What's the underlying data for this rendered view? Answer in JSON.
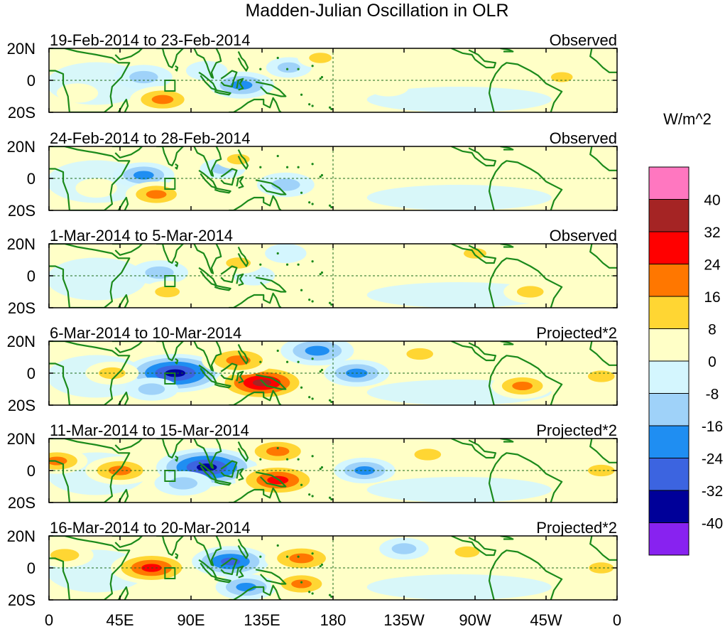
{
  "chart_data": {
    "type": "heatmap",
    "title": "Madden-Julian Oscillation in OLR",
    "units_label": "W/m^2",
    "x_tick_labels": [
      "0",
      "45E",
      "90E",
      "135E",
      "180",
      "135W",
      "90W",
      "45W",
      "0"
    ],
    "x_range_deg_east": [
      0,
      360
    ],
    "y_tick_labels": [
      "20N",
      "0",
      "20S"
    ],
    "y_range_deg": [
      -20,
      20
    ],
    "colorbar": {
      "levels": [
        40,
        32,
        24,
        16,
        8,
        0,
        -8,
        -16,
        -24,
        -32,
        -40
      ],
      "level_labels": [
        "40",
        "32",
        "24",
        "16",
        "8",
        "0",
        "-8",
        "-16",
        "-24",
        "-32",
        "-40"
      ],
      "colors": [
        "#ff77c0",
        "#a52424",
        "#ff0000",
        "#ff7700",
        "#ffd633",
        "#ffffc7",
        "#d4f6fe",
        "#9fd2f9",
        "#1f8ef2",
        "#3c64e0",
        "#000099",
        "#8822f0"
      ]
    },
    "panels": [
      {
        "period": "19-Feb-2014 to 23-Feb-2014",
        "kind": "Observed",
        "anomalies": [
          {
            "lon": 60,
            "lat": 2,
            "value": -16,
            "sign": "neg"
          },
          {
            "lon": 100,
            "lat": 6,
            "value": -8,
            "sign": "neg"
          },
          {
            "lon": 122,
            "lat": -3,
            "value": -20,
            "sign": "neg"
          },
          {
            "lon": 152,
            "lat": 8,
            "value": -10,
            "sign": "neg"
          },
          {
            "lon": 72,
            "lat": -12,
            "value": 20,
            "sign": "pos"
          },
          {
            "lon": 172,
            "lat": 14,
            "value": 10,
            "sign": "pos"
          },
          {
            "lon": 215,
            "lat": -4,
            "value": 8,
            "sign": "pos"
          },
          {
            "lon": 325,
            "lat": 2,
            "value": 9,
            "sign": "pos"
          },
          {
            "lon": 18,
            "lat": -8,
            "value": 8,
            "sign": "pos"
          }
        ]
      },
      {
        "period": "24-Feb-2014 to 28-Feb-2014",
        "kind": "Observed",
        "anomalies": [
          {
            "lon": 60,
            "lat": 2,
            "value": -18,
            "sign": "neg"
          },
          {
            "lon": 110,
            "lat": 6,
            "value": -10,
            "sign": "neg"
          },
          {
            "lon": 150,
            "lat": -4,
            "value": -16,
            "sign": "neg"
          },
          {
            "lon": 68,
            "lat": -10,
            "value": 18,
            "sign": "pos"
          },
          {
            "lon": 120,
            "lat": 12,
            "value": 10,
            "sign": "pos"
          },
          {
            "lon": 228,
            "lat": 15,
            "value": 8,
            "sign": "pos"
          },
          {
            "lon": 30,
            "lat": -6,
            "value": 8,
            "sign": "pos"
          }
        ]
      },
      {
        "period": "1-Mar-2014 to 5-Mar-2014",
        "kind": "Observed",
        "anomalies": [
          {
            "lon": 70,
            "lat": 2,
            "value": -16,
            "sign": "neg"
          },
          {
            "lon": 130,
            "lat": 0,
            "value": -8,
            "sign": "neg"
          },
          {
            "lon": 150,
            "lat": 14,
            "value": -8,
            "sign": "neg"
          },
          {
            "lon": 75,
            "lat": -10,
            "value": 12,
            "sign": "pos"
          },
          {
            "lon": 120,
            "lat": 8,
            "value": 12,
            "sign": "pos"
          },
          {
            "lon": 270,
            "lat": 14,
            "value": 10,
            "sign": "pos"
          },
          {
            "lon": 305,
            "lat": -10,
            "value": 14,
            "sign": "pos"
          }
        ]
      },
      {
        "period": "6-Mar-2014 to 10-Mar-2014",
        "kind": "Projected*2",
        "anomalies": [
          {
            "lon": 80,
            "lat": 0,
            "value": -38,
            "sign": "neg"
          },
          {
            "lon": 65,
            "lat": -10,
            "value": -14,
            "sign": "neg"
          },
          {
            "lon": 170,
            "lat": 14,
            "value": -24,
            "sign": "neg"
          },
          {
            "lon": 195,
            "lat": 0,
            "value": -20,
            "sign": "neg"
          },
          {
            "lon": 135,
            "lat": -6,
            "value": 34,
            "sign": "pos"
          },
          {
            "lon": 120,
            "lat": 8,
            "value": 24,
            "sign": "pos"
          },
          {
            "lon": 235,
            "lat": 12,
            "value": 14,
            "sign": "pos"
          },
          {
            "lon": 300,
            "lat": -8,
            "value": 18,
            "sign": "pos"
          },
          {
            "lon": 40,
            "lat": 0,
            "value": 14,
            "sign": "pos"
          },
          {
            "lon": 350,
            "lat": -2,
            "value": 14,
            "sign": "pos"
          }
        ]
      },
      {
        "period": "11-Mar-2014 to 15-Mar-2014",
        "kind": "Projected*2",
        "anomalies": [
          {
            "lon": 100,
            "lat": 2,
            "value": -38,
            "sign": "neg"
          },
          {
            "lon": 85,
            "lat": -8,
            "value": -16,
            "sign": "neg"
          },
          {
            "lon": 200,
            "lat": 0,
            "value": -18,
            "sign": "neg"
          },
          {
            "lon": 145,
            "lat": -6,
            "value": 30,
            "sign": "pos"
          },
          {
            "lon": 145,
            "lat": 12,
            "value": 22,
            "sign": "pos"
          },
          {
            "lon": 45,
            "lat": 0,
            "value": 22,
            "sign": "pos"
          },
          {
            "lon": 240,
            "lat": 10,
            "value": 14,
            "sign": "pos"
          },
          {
            "lon": 5,
            "lat": 6,
            "value": 18,
            "sign": "pos"
          },
          {
            "lon": 350,
            "lat": 0,
            "value": 14,
            "sign": "pos"
          }
        ]
      },
      {
        "period": "16-Mar-2014 to 20-Mar-2014",
        "kind": "Projected*2",
        "anomalies": [
          {
            "lon": 115,
            "lat": 4,
            "value": -26,
            "sign": "neg"
          },
          {
            "lon": 125,
            "lat": -12,
            "value": -18,
            "sign": "neg"
          },
          {
            "lon": 225,
            "lat": 12,
            "value": -12,
            "sign": "neg"
          },
          {
            "lon": 65,
            "lat": 0,
            "value": 28,
            "sign": "pos"
          },
          {
            "lon": 160,
            "lat": 6,
            "value": 24,
            "sign": "pos"
          },
          {
            "lon": 160,
            "lat": -10,
            "value": 18,
            "sign": "pos"
          },
          {
            "lon": 10,
            "lat": 8,
            "value": 16,
            "sign": "pos"
          },
          {
            "lon": 265,
            "lat": 10,
            "value": 12,
            "sign": "pos"
          },
          {
            "lon": 350,
            "lat": 0,
            "value": 12,
            "sign": "pos"
          }
        ]
      }
    ]
  }
}
